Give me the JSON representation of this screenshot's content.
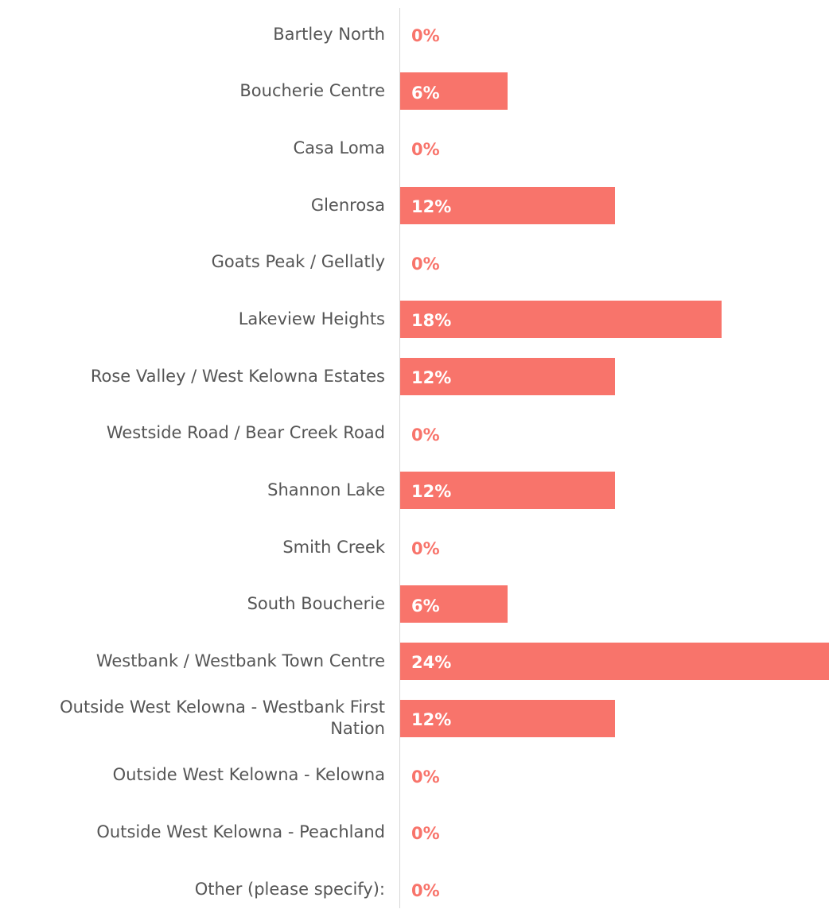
{
  "chart_data": {
    "type": "barh",
    "categories": [
      "Bartley North",
      "Boucherie Centre",
      "Casa Loma",
      "Glenrosa",
      "Goats Peak / Gellatly",
      "Lakeview Heights",
      "Rose Valley / West Kelowna Estates",
      "Westside Road / Bear Creek Road",
      "Shannon Lake",
      "Smith Creek",
      "South Boucherie",
      "Westbank / Westbank Town Centre",
      "Outside West Kelowna - Westbank First Nation",
      "Outside West Kelowna - Kelowna",
      "Outside West Kelowna - Peachland",
      "Other (please specify):"
    ],
    "values": [
      0,
      6,
      0,
      12,
      0,
      18,
      12,
      0,
      12,
      0,
      6,
      24,
      12,
      0,
      0,
      0
    ],
    "value_labels": [
      "0%",
      "6%",
      "0%",
      "12%",
      "0%",
      "18%",
      "12%",
      "0%",
      "12%",
      "0%",
      "6%",
      "24%",
      "12%",
      "0%",
      "0%",
      "0%"
    ],
    "color": "#f8746b",
    "xlim": [
      0,
      24
    ]
  }
}
